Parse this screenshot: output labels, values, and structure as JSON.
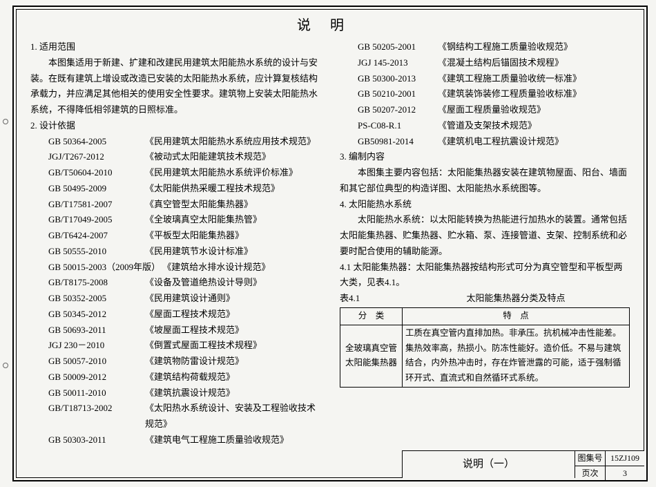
{
  "title": "说明",
  "left": {
    "sec1": {
      "heading": "1. 适用范围",
      "para": "本图集适用于新建、扩建和改建民用建筑太阳能热水系统的设计与安装。在既有建筑上增设或改造已安装的太阳能热水系统，应计算复核结构承载力，并应满足其他相关的使用安全性要求。建筑物上安装太阳能热水系统，不得降低相邻建筑的日照标准。"
    },
    "sec2": {
      "heading": "2. 设计依据",
      "standards": [
        {
          "code": "GB 50364-2005",
          "name": "《民用建筑太阳能热水系统应用技术规范》"
        },
        {
          "code": "JGJ/T267-2012",
          "name": "《被动式太阳能建筑技术规范》"
        },
        {
          "code": "GB/T50604-2010",
          "name": "《民用建筑太阳能热水系统评价标准》"
        },
        {
          "code": "GB 50495-2009",
          "name": "《太阳能供热采暖工程技术规范》"
        },
        {
          "code": "GB/T17581-2007",
          "name": "《真空管型太阳能集热器》"
        },
        {
          "code": "GB/T17049-2005",
          "name": "《全玻璃真空太阳能集热管》"
        },
        {
          "code": "GB/T6424-2007",
          "name": "《平板型太阳能集热器》"
        },
        {
          "code": "GB 50555-2010",
          "name": "《民用建筑节水设计标准》"
        },
        {
          "code": "GB 50015-2003（2009年版） 《建筑给水排水设计规范》",
          "name": ""
        },
        {
          "code": "GB/T8175-2008",
          "name": "《设备及管道绝热设计导则》"
        },
        {
          "code": "GB 50352-2005",
          "name": "《民用建筑设计通则》"
        },
        {
          "code": "GB 50345-2012",
          "name": "《屋面工程技术规范》"
        },
        {
          "code": "GB 50693-2011",
          "name": "《坡屋面工程技术规范》"
        },
        {
          "code": "JGJ 230－2010",
          "name": "《倒置式屋面工程技术规程》"
        },
        {
          "code": "GB 50057-2010",
          "name": "《建筑物防雷设计规范》"
        },
        {
          "code": "GB 50009-2012",
          "name": "《建筑结构荷载规范》"
        },
        {
          "code": "GB 50011-2010",
          "name": "《建筑抗震设计规范》"
        },
        {
          "code": "GB/T18713-2002",
          "name": "《太阳热水系统设计、安装及工程验收技术规范》"
        },
        {
          "code": "GB 50303-2011",
          "name": "《建筑电气工程施工质量验收规范》"
        }
      ]
    }
  },
  "right": {
    "standards": [
      {
        "code": "GB 50205-2001",
        "name": "《钢结构工程施工质量验收规范》"
      },
      {
        "code": "JGJ 145-2013",
        "name": "《混凝土结构后锚固技术规程》"
      },
      {
        "code": "GB 50300-2013",
        "name": "《建筑工程施工质量验收统一标准》"
      },
      {
        "code": "GB 50210-2001",
        "name": "《建筑装饰装修工程质量验收标准》"
      },
      {
        "code": "GB 50207-2012",
        "name": "《屋面工程质量验收规范》"
      },
      {
        "code": "PS-C08-R.1",
        "name": "《管道及支架技术规范》"
      },
      {
        "code": "GB50981-2014",
        "name": "《建筑机电工程抗震设计规范》"
      }
    ],
    "sec3": {
      "heading": "3. 编制内容",
      "para": "本图集主要内容包括：太阳能集热器安装在建筑物屋面、阳台、墙面和其它部位典型的构造详图、太阳能热水系统图等。"
    },
    "sec4": {
      "heading": "4. 太阳能热水系统",
      "para1": "太阳能热水系统：以太阳能转换为热能进行加热水的装置。通常包括太阳能集热器、贮集热器、贮水箱、泵、连接管道、支架、控制系统和必要时配合使用的辅助能源。",
      "para2": "4.1 太阳能集热器：太阳能集热器按结构形式可分为真空管型和平板型两大类，见表4.1。",
      "table": {
        "number": "表4.1",
        "caption": "太阳能集热器分类及特点",
        "col1": "分　类",
        "col2": "特　点",
        "row_cat": "全玻璃真空管太阳能集热器",
        "row_feat": "工质在真空管内直排加热。非承压。抗机械冲击性能差。集热效率高，热损小。防冻性能好。造价低。不易与建筑结合，内外热冲击时，存在炸管泄露的可能，适于强制循环开式、直流式和自然循环式系统。"
      }
    }
  },
  "footer": {
    "title": "说明（一）",
    "meta": {
      "label1": "图集号",
      "val1": "15ZJ109",
      "label2": "页次",
      "val2": "3"
    }
  }
}
